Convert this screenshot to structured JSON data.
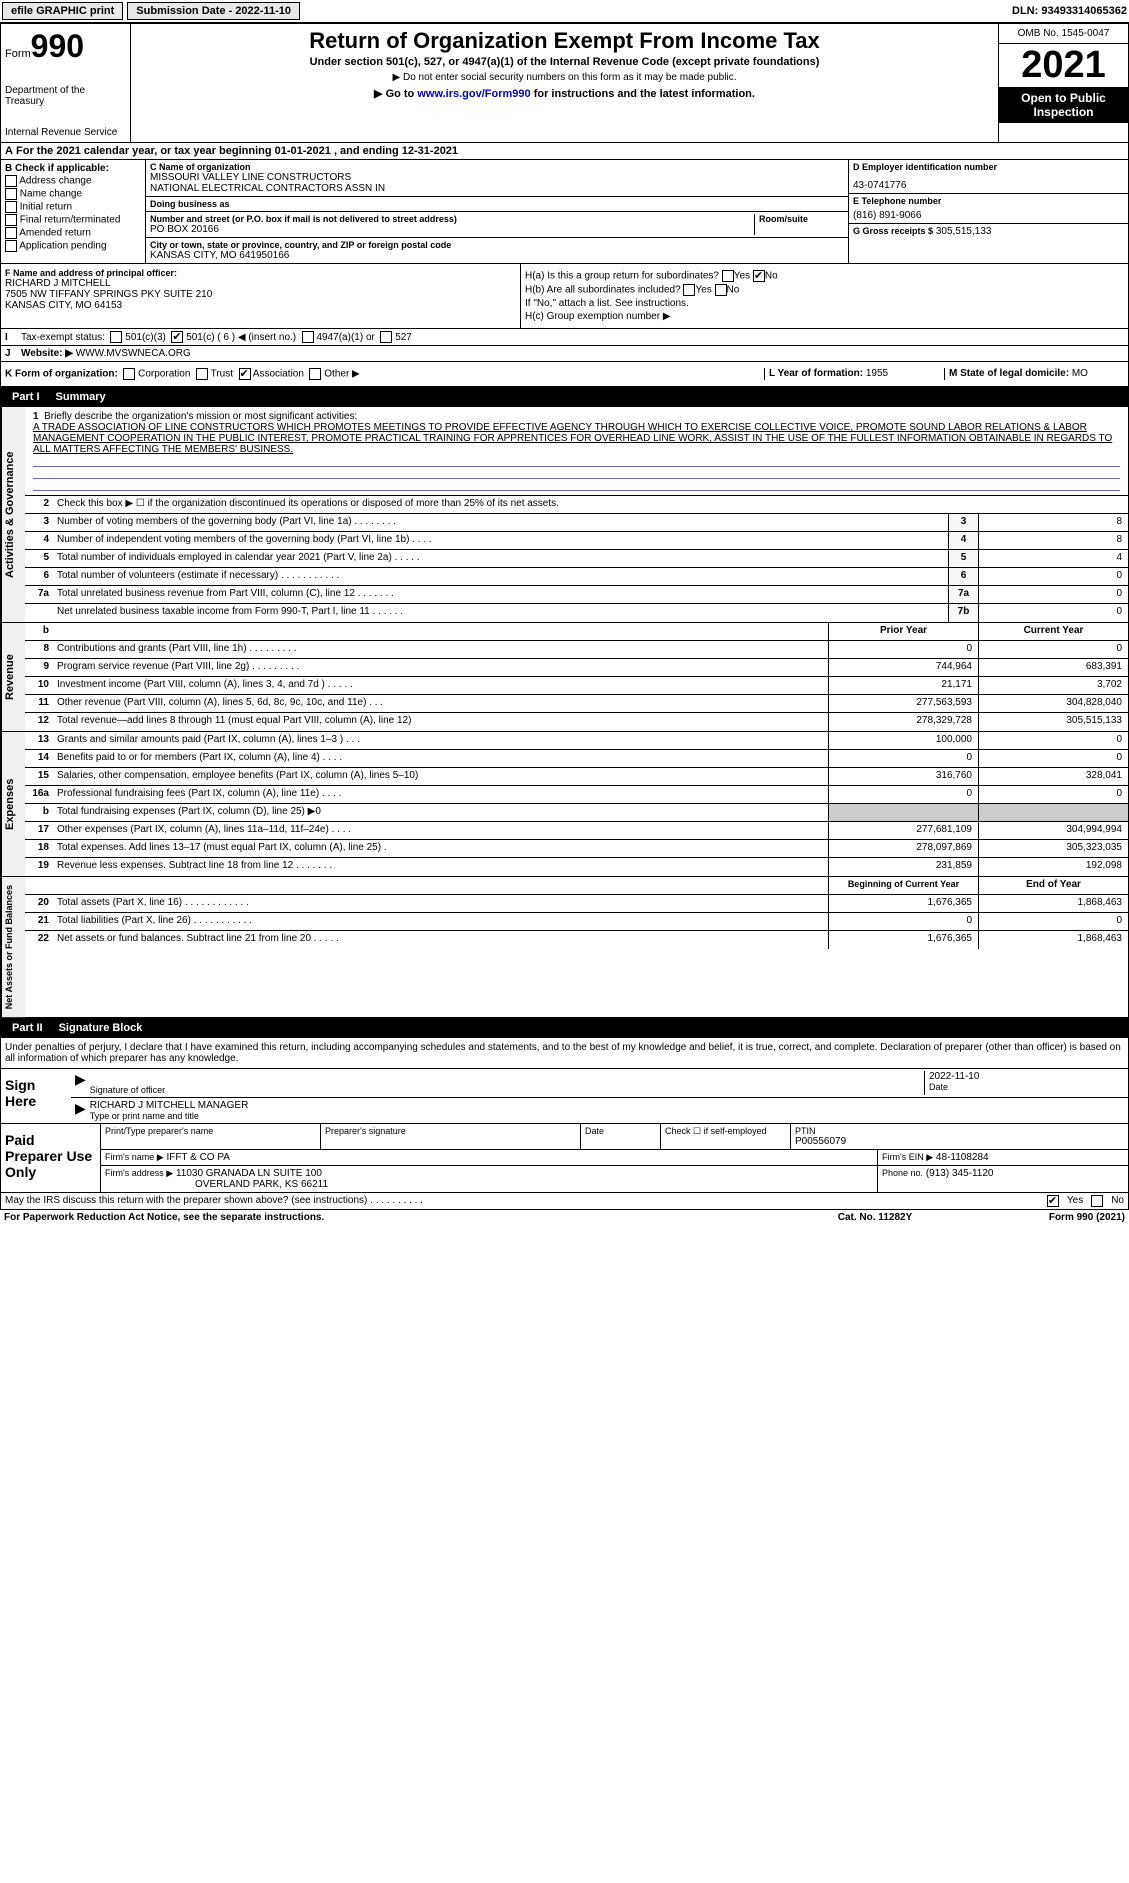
{
  "topbar": {
    "efile_label": "efile GRAPHIC print",
    "submission_label": "Submission Date - 2022-11-10",
    "dln": "DLN: 93493314065362"
  },
  "header": {
    "form_label": "Form",
    "form_number": "990",
    "dept": "Department of the Treasury",
    "irs": "Internal Revenue Service",
    "title": "Return of Organization Exempt From Income Tax",
    "subtitle": "Under section 501(c), 527, or 4947(a)(1) of the Internal Revenue Code (except private foundations)",
    "note1": "▶ Do not enter social security numbers on this form as it may be made public.",
    "note2": "▶ Go to www.irs.gov/Form990 for instructions and the latest information.",
    "link": "www.irs.gov/Form990",
    "omb": "OMB No. 1545-0047",
    "year": "2021",
    "open_public": "Open to Public Inspection"
  },
  "sectionA": {
    "tax_year": "For the 2021 calendar year, or tax year beginning 01-01-2021  , and ending 12-31-2021",
    "a_label": "A"
  },
  "sectionB": {
    "title": "B Check if applicable:",
    "options": [
      "Address change",
      "Name change",
      "Initial return",
      "Final return/terminated",
      "Amended return",
      "Application pending"
    ]
  },
  "sectionC": {
    "name_label": "C Name of organization",
    "name": "MISSOURI VALLEY LINE CONSTRUCTORS",
    "name2": "NATIONAL ELECTRICAL CONTRACTORS ASSN IN",
    "dba_label": "Doing business as",
    "dba": "",
    "street_label": "Number and street (or P.O. box if mail is not delivered to street address)",
    "street": "PO BOX 20166",
    "room_label": "Room/suite",
    "city_label": "City or town, state or province, country, and ZIP or foreign postal code",
    "city": "KANSAS CITY, MO  641950166"
  },
  "sectionD": {
    "ein_label": "D Employer identification number",
    "ein": "43-0741776",
    "phone_label": "E Telephone number",
    "phone": "(816) 891-9066",
    "gross_label": "G Gross receipts $",
    "gross": "305,515,133"
  },
  "sectionF": {
    "label": "F  Name and address of principal officer:",
    "name": "RICHARD J MITCHELL",
    "addr1": "7505 NW TIFFANY SPRINGS PKY SUITE 210",
    "addr2": "KANSAS CITY, MO  64153"
  },
  "sectionH": {
    "ha_label": "H(a)  Is this a group return for subordinates?",
    "ha_yes": "Yes",
    "ha_no": "No",
    "hb_label": "H(b)  Are all subordinates included?",
    "hb_yes": "Yes",
    "hb_no": "No",
    "hb_note": "If \"No,\" attach a list. See instructions.",
    "hc_label": "H(c)  Group exemption number ▶"
  },
  "sectionI": {
    "label": "I",
    "tax_exempt": "Tax-exempt status:",
    "opt1": "501(c)(3)",
    "opt2": "501(c) ( 6 ) ◀ (insert no.)",
    "opt3": "4947(a)(1) or",
    "opt4": "527"
  },
  "sectionJ": {
    "label": "J",
    "website_label": "Website: ▶",
    "website": "WWW.MVSWNECA.ORG"
  },
  "sectionK": {
    "label": "K Form of organization:",
    "opts": [
      "Corporation",
      "Trust",
      "Association",
      "Other ▶"
    ],
    "l_label": "L Year of formation:",
    "l_val": "1955",
    "m_label": "M State of legal domicile:",
    "m_val": "MO"
  },
  "part1": {
    "label": "Part I",
    "title": "Summary"
  },
  "mission": {
    "num": "1",
    "label": "Briefly describe the organization's mission or most significant activities:",
    "text": "A TRADE ASSOCIATION OF LINE CONSTRUCTORS WHICH PROMOTES MEETINGS TO PROVIDE EFFECTIVE AGENCY THROUGH WHICH TO EXERCISE COLLECTIVE VOICE, PROMOTE SOUND LABOR RELATIONS & LABOR MANAGEMENT COOPERATION IN THE PUBLIC INTEREST, PROMOTE PRACTICAL TRAINING FOR APPRENTICES FOR OVERHEAD LINE WORK, ASSIST IN THE USE OF THE FULLEST INFORMATION OBTAINABLE IN REGARDS TO ALL MATTERS AFFECTING THE MEMBERS' BUSINESS."
  },
  "governance": {
    "tab": "Activities & Governance",
    "lines": [
      {
        "num": "2",
        "desc": "Check this box ▶ ☐  if the organization discontinued its operations or disposed of more than 25% of its net assets.",
        "box": "",
        "val": ""
      },
      {
        "num": "3",
        "desc": "Number of voting members of the governing body (Part VI, line 1a)  .   .   .   .   .   .   .   .",
        "box": "3",
        "val": "8"
      },
      {
        "num": "4",
        "desc": "Number of independent voting members of the governing body (Part VI, line 1b)  .   .   .   .",
        "box": "4",
        "val": "8"
      },
      {
        "num": "5",
        "desc": "Total number of individuals employed in calendar year 2021 (Part V, line 2a)  .   .   .   .   .",
        "box": "5",
        "val": "4"
      },
      {
        "num": "6",
        "desc": "Total number of volunteers (estimate if necessary)  .   .   .   .   .   .   .   .   .   .   .",
        "box": "6",
        "val": "0"
      },
      {
        "num": "7a",
        "desc": "Total unrelated business revenue from Part VIII, column (C), line 12  .   .   .   .   .   .   .",
        "box": "7a",
        "val": "0"
      },
      {
        "num": "",
        "desc": "Net unrelated business taxable income from Form 990-T, Part I, line 11  .   .   .   .   .   .",
        "box": "7b",
        "val": "0"
      }
    ],
    "b_label": "b"
  },
  "revenue": {
    "tab": "Revenue",
    "header": {
      "prior": "Prior Year",
      "current": "Current Year"
    },
    "lines": [
      {
        "num": "8",
        "desc": "Contributions and grants (Part VIII, line 1h)  .   .   .   .   .   .   .   .   .",
        "prior": "0",
        "current": "0"
      },
      {
        "num": "9",
        "desc": "Program service revenue (Part VIII, line 2g)  .   .   .   .   .   .   .   .   .",
        "prior": "744,964",
        "current": "683,391"
      },
      {
        "num": "10",
        "desc": "Investment income (Part VIII, column (A), lines 3, 4, and 7d )  .   .   .   .   .",
        "prior": "21,171",
        "current": "3,702"
      },
      {
        "num": "11",
        "desc": "Other revenue (Part VIII, column (A), lines 5, 6d, 8c, 9c, 10c, and 11e)  .   .   .",
        "prior": "277,563,593",
        "current": "304,828,040"
      },
      {
        "num": "12",
        "desc": "Total revenue—add lines 8 through 11 (must equal Part VIII, column (A), line 12)",
        "prior": "278,329,728",
        "current": "305,515,133"
      }
    ]
  },
  "expenses": {
    "tab": "Expenses",
    "lines": [
      {
        "num": "13",
        "desc": "Grants and similar amounts paid (Part IX, column (A), lines 1–3 )  .   .   .",
        "prior": "100,000",
        "current": "0"
      },
      {
        "num": "14",
        "desc": "Benefits paid to or for members (Part IX, column (A), line 4)  .   .   .   .",
        "prior": "0",
        "current": "0"
      },
      {
        "num": "15",
        "desc": "Salaries, other compensation, employee benefits (Part IX, column (A), lines 5–10)",
        "prior": "316,760",
        "current": "328,041"
      },
      {
        "num": "16a",
        "desc": "Professional fundraising fees (Part IX, column (A), line 11e)  .   .   .   .",
        "prior": "0",
        "current": "0"
      },
      {
        "num": "b",
        "desc": "Total fundraising expenses (Part IX, column (D), line 25) ▶0",
        "prior": "",
        "current": "",
        "shaded": true
      },
      {
        "num": "17",
        "desc": "Other expenses (Part IX, column (A), lines 11a–11d, 11f–24e)  .   .   .   .",
        "prior": "277,681,109",
        "current": "304,994,994"
      },
      {
        "num": "18",
        "desc": "Total expenses. Add lines 13–17 (must equal Part IX, column (A), line 25)  .",
        "prior": "278,097,869",
        "current": "305,323,035"
      },
      {
        "num": "19",
        "desc": "Revenue less expenses. Subtract line 18 from line 12  .   .   .   .   .   .   .",
        "prior": "231,859",
        "current": "192,098"
      }
    ]
  },
  "netassets": {
    "tab": "Net Assets or Fund Balances",
    "header": {
      "prior": "Beginning of Current Year",
      "current": "End of Year"
    },
    "lines": [
      {
        "num": "20",
        "desc": "Total assets (Part X, line 16)  .   .   .   .   .   .   .   .   .   .   .   .",
        "prior": "1,676,365",
        "current": "1,868,463"
      },
      {
        "num": "21",
        "desc": "Total liabilities (Part X, line 26)  .   .   .   .   .   .   .   .   .   .   .",
        "prior": "0",
        "current": "0"
      },
      {
        "num": "22",
        "desc": "Net assets or fund balances. Subtract line 21 from line 20  .   .   .   .   .",
        "prior": "1,676,365",
        "current": "1,868,463"
      }
    ]
  },
  "part2": {
    "label": "Part II",
    "title": "Signature Block"
  },
  "signature": {
    "declaration": "Under penalties of perjury, I declare that I have examined this return, including accompanying schedules and statements, and to the best of my knowledge and belief, it is true, correct, and complete. Declaration of preparer (other than officer) is based on all information of which preparer has any knowledge.",
    "sign_here": "Sign Here",
    "sig_officer": "Signature of officer",
    "date": "2022-11-10",
    "date_label": "Date",
    "officer_name": "RICHARD J MITCHELL MANAGER",
    "type_label": "Type or print name and title"
  },
  "preparer": {
    "label": "Paid Preparer Use Only",
    "print_name_label": "Print/Type preparer's name",
    "print_name": "",
    "sig_label": "Preparer's signature",
    "date_label": "Date",
    "check_label": "Check ☐ if self-employed",
    "ptin_label": "PTIN",
    "ptin": "P00556079",
    "firm_name_label": "Firm's name   ▶",
    "firm_name": "IFFT & CO PA",
    "firm_ein_label": "Firm's EIN ▶",
    "firm_ein": "48-1108284",
    "firm_addr_label": "Firm's address ▶",
    "firm_addr": "11030 GRANADA LN SUITE 100",
    "firm_city": "OVERLAND PARK, KS  66211",
    "phone_label": "Phone no.",
    "phone": "(913) 345-1120"
  },
  "footer": {
    "discuss": "May the IRS discuss this return with the preparer shown above? (see instructions)  .   .   .   .   .   .   .   .   .   .",
    "yes": "Yes",
    "no": "No",
    "paperwork": "For Paperwork Reduction Act Notice, see the separate instructions.",
    "cat": "Cat. No. 11282Y",
    "form": "Form 990 (2021)"
  }
}
